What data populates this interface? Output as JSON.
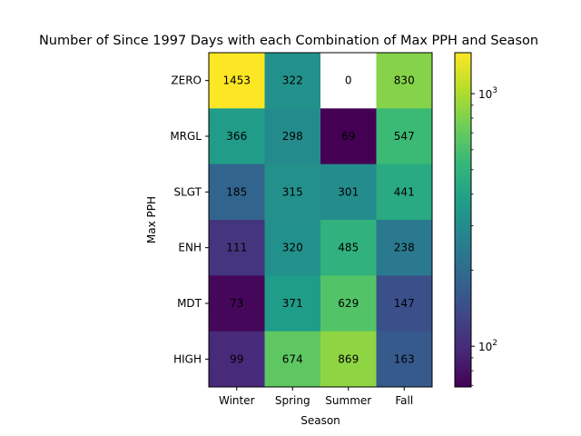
{
  "chart_data": {
    "type": "heatmap",
    "title": "Number of Since 1997 Days with each Combination of Max PPH and Season",
    "xlabel": "Season",
    "ylabel": "Max PPH",
    "x_categories": [
      "Winter",
      "Spring",
      "Summer",
      "Fall"
    ],
    "y_categories": [
      "ZERO",
      "MRGL",
      "SLGT",
      "ENH",
      "MDT",
      "HIGH"
    ],
    "values": [
      [
        1453,
        322,
        0,
        830
      ],
      [
        366,
        298,
        69,
        547
      ],
      [
        185,
        315,
        301,
        441
      ],
      [
        111,
        320,
        485,
        238
      ],
      [
        73,
        371,
        629,
        147
      ],
      [
        99,
        674,
        869,
        163
      ]
    ],
    "cell_labels": [
      [
        "1453",
        "322",
        "0",
        "830"
      ],
      [
        "366",
        "298",
        "69",
        "547"
      ],
      [
        "185",
        "315",
        "301",
        "441"
      ],
      [
        "111",
        "320",
        "485",
        "238"
      ],
      [
        "73",
        "371",
        "629",
        "147"
      ],
      [
        "99",
        "674",
        "869",
        "163"
      ]
    ],
    "colormap": "viridis",
    "color_scale": "log",
    "color_range": [
      69,
      1453
    ],
    "masked_value_color": "#ffffff",
    "colorbar": {
      "major_ticks": [
        {
          "value": 100,
          "base": "10",
          "exp": "2"
        },
        {
          "value": 1000,
          "base": "10",
          "exp": "3"
        }
      ],
      "minor_ticks": [
        70,
        80,
        90,
        200,
        300,
        400,
        500,
        600,
        700,
        800,
        900
      ]
    },
    "grid": false
  }
}
